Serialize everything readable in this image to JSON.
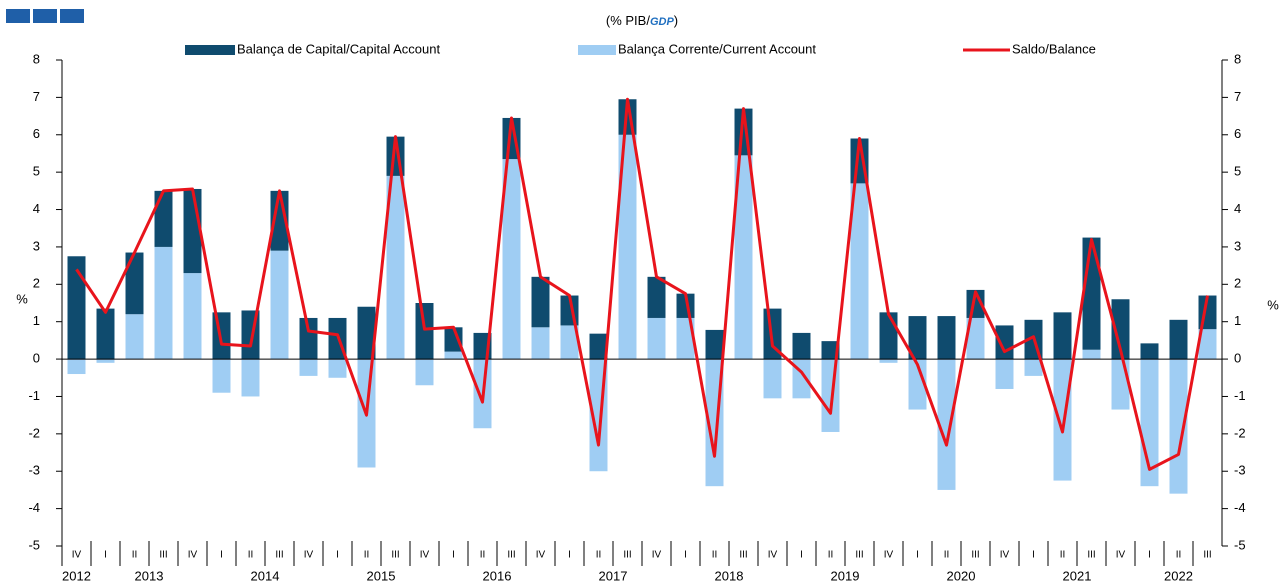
{
  "chart_data": {
    "type": "bar",
    "title_prefix": "(% PIB/",
    "title_emph": "GDP",
    "title_suffix": ")",
    "y_label": "%",
    "y2_label": "%",
    "categories": [
      "IV",
      "I",
      "II",
      "III",
      "IV",
      "I",
      "II",
      "III",
      "IV",
      "I",
      "II",
      "III",
      "IV",
      "I",
      "II",
      "III",
      "IV",
      "I",
      "II",
      "III",
      "IV",
      "I",
      "II",
      "III",
      "IV",
      "I",
      "II",
      "III",
      "IV",
      "I",
      "II",
      "III",
      "IV",
      "I",
      "II",
      "III",
      "IV",
      "I",
      "II",
      "III"
    ],
    "years": [
      "2012",
      "2013",
      "2014",
      "2015",
      "2016",
      "2017",
      "2018",
      "2019",
      "2020",
      "2021",
      "2022"
    ],
    "series": [
      {
        "name": "Balança de Capital/Capital Account",
        "type": "bar",
        "color": "#0f4b6e",
        "values": [
          2.75,
          1.35,
          1.65,
          1.5,
          2.25,
          1.25,
          1.3,
          1.6,
          1.1,
          1.1,
          1.4,
          1.05,
          1.5,
          0.65,
          0.7,
          1.1,
          1.35,
          0.8,
          0.68,
          0.95,
          1.1,
          0.65,
          0.78,
          1.25,
          1.35,
          0.7,
          0.48,
          1.2,
          1.25,
          1.15,
          1.15,
          0.75,
          0.9,
          1.05,
          1.25,
          3.0,
          1.6,
          0.42,
          1.05,
          0.9
        ]
      },
      {
        "name": "Balança Corrente/Current Account",
        "type": "bar",
        "color": "#9fcdf3",
        "values": [
          -0.4,
          -0.1,
          1.2,
          3.0,
          2.3,
          -0.9,
          -1.0,
          2.9,
          -0.45,
          -0.5,
          -2.9,
          4.9,
          -0.7,
          0.2,
          -1.85,
          5.35,
          0.85,
          0.9,
          -3.0,
          6.0,
          1.1,
          1.1,
          -3.4,
          5.45,
          -1.05,
          -1.05,
          -1.95,
          4.7,
          -0.1,
          -1.35,
          -3.5,
          1.1,
          -0.8,
          -0.45,
          -3.25,
          0.25,
          -1.35,
          -3.4,
          -3.6,
          0.8
        ]
      },
      {
        "name": "Saldo/Balance",
        "type": "line",
        "color": "#e8141c",
        "values": [
          2.4,
          1.25,
          2.85,
          4.5,
          4.55,
          0.4,
          0.35,
          4.5,
          0.75,
          0.65,
          -1.5,
          5.95,
          0.8,
          0.85,
          -1.15,
          6.45,
          2.2,
          1.7,
          -2.3,
          6.95,
          2.2,
          1.75,
          -2.6,
          6.7,
          0.35,
          -0.35,
          -1.45,
          5.9,
          1.2,
          -0.15,
          -2.3,
          1.8,
          0.2,
          0.6,
          -1.95,
          3.2,
          0.25,
          -2.95,
          -2.55,
          1.7
        ]
      }
    ],
    "ylim": [
      -5,
      8
    ],
    "yticks": [
      -5,
      -4,
      -3,
      -2,
      -1,
      0,
      1,
      2,
      3,
      4,
      5,
      6,
      7,
      8
    ],
    "y2lim": [
      -5,
      8
    ],
    "y2ticks": [
      -5,
      -4,
      -3,
      -2,
      -1,
      0,
      1,
      2,
      3,
      4,
      5,
      6,
      7,
      8
    ],
    "grid": false
  }
}
